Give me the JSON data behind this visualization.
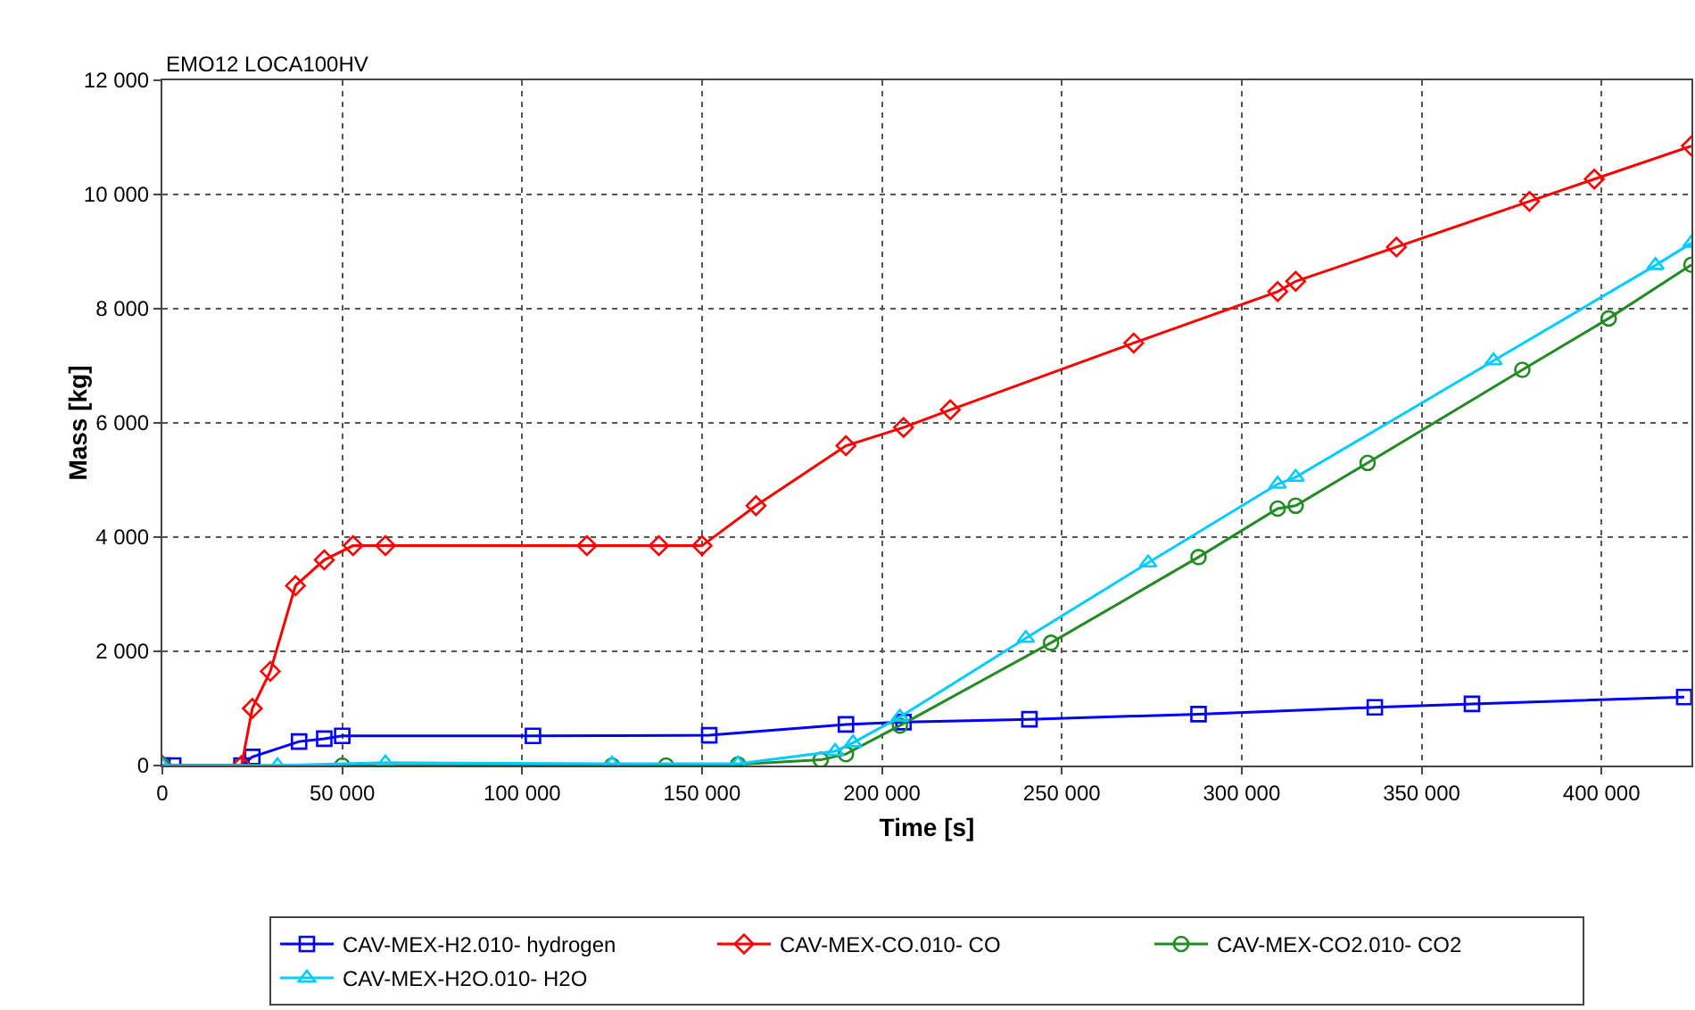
{
  "chart_data": {
    "type": "line",
    "xlabel": "Time [s]",
    "ylabel": "Mass [kg]",
    "annotations": [
      "EMO12 LOCA100HV"
    ],
    "xlim": [
      0,
      425000
    ],
    "ylim": [
      0,
      12000
    ],
    "xticks": [
      0,
      {
        "value": 50000,
        "label": "50 000"
      },
      {
        "value": 100000,
        "label": "100 000"
      },
      {
        "value": 150000,
        "label": "150 000"
      },
      {
        "value": 200000,
        "label": "200 000"
      },
      {
        "value": 250000,
        "label": "250 000"
      },
      {
        "value": 300000,
        "label": "300 000"
      },
      {
        "value": 350000,
        "label": "350 000"
      },
      {
        "value": 400000,
        "label": "400 000"
      }
    ],
    "yticks": [
      0,
      {
        "value": 2000,
        "label": "2 000"
      },
      {
        "value": 4000,
        "label": "4 000"
      },
      {
        "value": 6000,
        "label": "6 000"
      },
      {
        "value": 8000,
        "label": "8 000"
      },
      {
        "value": 10000,
        "label": "10 000"
      },
      {
        "value": 12000,
        "label": "12 000"
      }
    ],
    "grid": true,
    "legend": "bottom",
    "line_style": "solid",
    "series": [
      {
        "name": "CAV-MEX-H2.010- hydrogen",
        "color": "#0000ff",
        "marker": "square",
        "x": [
          0,
          3000,
          22000,
          25000,
          38000,
          45000,
          50000,
          103000,
          152000,
          190000,
          206000,
          241000,
          288000,
          337000,
          364000,
          423000
        ],
        "values": [
          0,
          0,
          0,
          150,
          420,
          470,
          520,
          520,
          530,
          720,
          760,
          810,
          900,
          1020,
          1080,
          1200
        ]
      },
      {
        "name": "CAV-MEX-CO.010- CO",
        "color": "#ff0000",
        "marker": "diamond",
        "x": [
          0,
          22000,
          25000,
          30000,
          37000,
          45000,
          53000,
          62000,
          118000,
          138000,
          150000,
          165000,
          190000,
          206000,
          219000,
          270000,
          310000,
          315000,
          343000,
          380000,
          398000,
          425000
        ],
        "values": [
          0,
          0,
          1000,
          1650,
          3150,
          3600,
          3850,
          3850,
          3850,
          3850,
          3850,
          4550,
          5600,
          5920,
          6230,
          7400,
          8300,
          8480,
          9080,
          9880,
          10270,
          10850
        ]
      },
      {
        "name": "CAV-MEX-CO2.010- CO2",
        "color": "#228b22",
        "marker": "circle",
        "x": [
          0,
          50000,
          125000,
          140000,
          160000,
          183000,
          190000,
          205000,
          247000,
          288000,
          310000,
          315000,
          335000,
          378000,
          402000,
          425000
        ],
        "values": [
          0,
          0,
          0,
          0,
          20,
          100,
          200,
          700,
          2150,
          3650,
          4500,
          4550,
          5300,
          6930,
          7830,
          8770
        ]
      },
      {
        "name": "CAV-MEX-H2O.010- H2O",
        "color": "#00ccff",
        "marker": "triangle",
        "x": [
          0,
          32000,
          62000,
          125000,
          160000,
          187000,
          192000,
          205000,
          240000,
          274000,
          310000,
          315000,
          370000,
          415000,
          425000
        ],
        "values": [
          0,
          0,
          50,
          30,
          30,
          250,
          400,
          850,
          2230,
          3550,
          4930,
          5050,
          7090,
          8760,
          9150
        ]
      }
    ]
  }
}
